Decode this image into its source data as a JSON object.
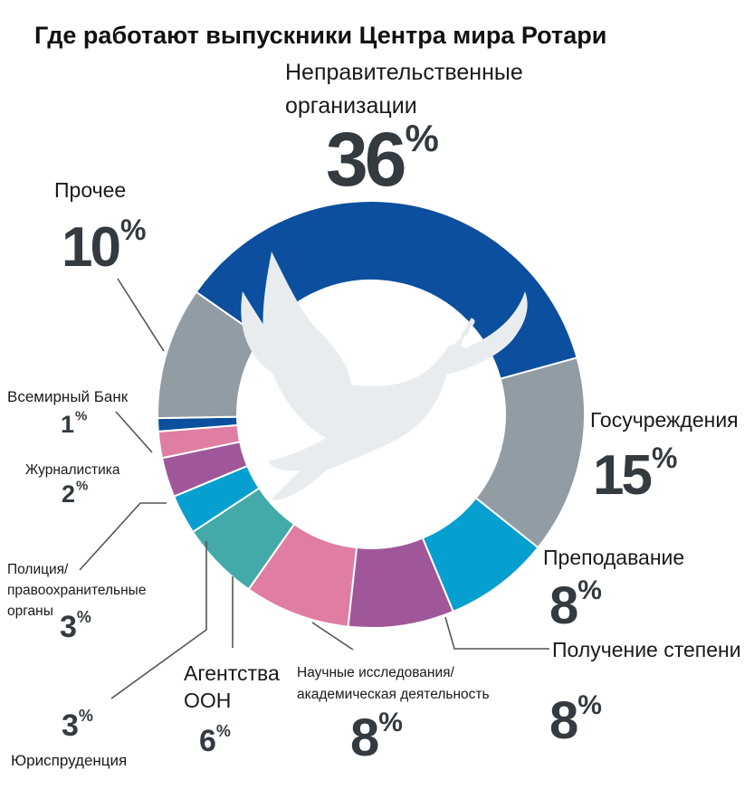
{
  "chart_data": {
    "type": "pie",
    "title": "Где работают выпускники Центра мира Ротари",
    "pct_symbol": "%",
    "colors": {
      "navy": "#0b4f9e",
      "gray": "#929ca5",
      "cyan": "#06a0d0",
      "purple": "#a0579a",
      "pink": "#df7ea2",
      "teal": "#43aaa9"
    },
    "slices": [
      {
        "label": "Неправительственные организации",
        "label_lines": [
          "Неправительственные",
          "организации"
        ],
        "value": 36,
        "color": "#0b4f9e"
      },
      {
        "label": "Госучреждения",
        "label_lines": [
          "Госучреждения"
        ],
        "value": 15,
        "color": "#929ca5"
      },
      {
        "label": "Преподавание",
        "label_lines": [
          "Преподавание"
        ],
        "value": 8,
        "color": "#06a0d0"
      },
      {
        "label": "Получение степени",
        "label_lines": [
          "Получение степени"
        ],
        "value": 8,
        "color": "#a0579a"
      },
      {
        "label": "Научные исследования/ академическая деятельность",
        "label_lines": [
          "Научные исследования/",
          "академическая деятельность"
        ],
        "value": 8,
        "color": "#df7ea2"
      },
      {
        "label": "Агентства ООН",
        "label_lines": [
          "Агентства",
          "ООН"
        ],
        "value": 6,
        "color": "#43aaa9"
      },
      {
        "label": "Юриспруденция",
        "label_lines": [
          "Юриспруденция"
        ],
        "value": 3,
        "color": "#06a0d0"
      },
      {
        "label": "Полиция/ правоохранительные органы",
        "label_lines": [
          "Полиция/",
          "правоохранительные",
          "органы"
        ],
        "value": 3,
        "color": "#a0579a"
      },
      {
        "label": "Журналистика",
        "label_lines": [
          "Журналистика"
        ],
        "value": 2,
        "color": "#df7ea2"
      },
      {
        "label": "Всемирный Банк",
        "label_lines": [
          "Всемирный Банк"
        ],
        "value": 1,
        "color": "#0b4f9e"
      },
      {
        "label": "Прочее",
        "label_lines": [
          "Прочее"
        ],
        "value": 10,
        "color": "#929ca5"
      }
    ]
  }
}
